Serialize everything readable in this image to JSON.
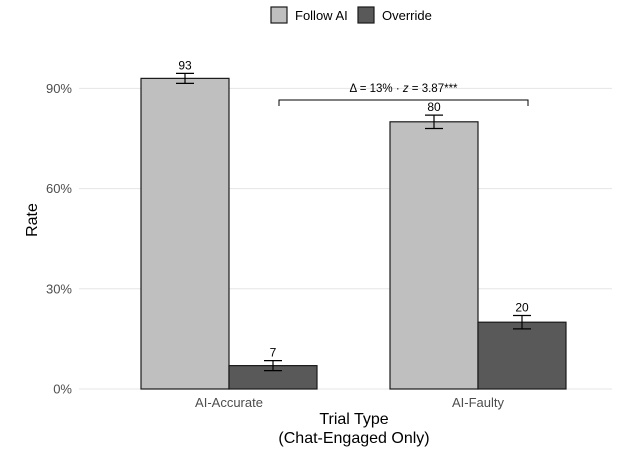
{
  "chart_data": {
    "type": "bar",
    "categories": [
      "AI-Accurate",
      "AI-Faulty"
    ],
    "series": [
      {
        "name": "Follow AI",
        "values": [
          93,
          80
        ],
        "error": [
          1.5,
          2.0
        ],
        "labels": [
          "93",
          "80"
        ],
        "color": "#bfbfbf"
      },
      {
        "name": "Override",
        "values": [
          7,
          20
        ],
        "error": [
          1.5,
          2.0
        ],
        "labels": [
          "7",
          "20"
        ],
        "color": "#595959"
      }
    ],
    "xlabel": [
      "Trial Type",
      "(Chat-Engaged Only)"
    ],
    "ylabel": "Rate",
    "ylim": [
      0,
      100
    ],
    "yticks": [
      0,
      30,
      60,
      90
    ],
    "ytick_labels": [
      "0%",
      "30%",
      "60%",
      "90%"
    ],
    "grid": true,
    "legend": "top",
    "annotation": {
      "text_prefix": "Δ = 13% · ",
      "text_var": "z",
      "text_suffix": " = 3.87***",
      "from_category": "AI-Accurate",
      "to_category": "AI-Faulty",
      "series": "Follow AI"
    }
  }
}
